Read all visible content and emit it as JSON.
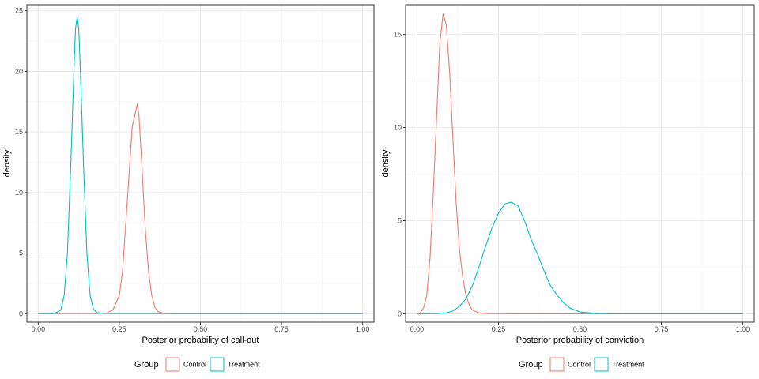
{
  "colors": {
    "control": "#F8766D",
    "treatment": "#00BFC4",
    "grid_major": "#EBEBEB",
    "grid_minor": "#F5F5F5",
    "panel_border": "#333333",
    "tick_text": "#4D4D4D"
  },
  "chart_data": [
    {
      "type": "line",
      "title": "",
      "xlabel": "Posterior probability of call-out",
      "ylabel": "density",
      "xlim": [
        -0.035,
        1.035
      ],
      "ylim": [
        -0.7,
        25.5
      ],
      "x_ticks": [
        0.0,
        0.25,
        0.5,
        0.75,
        1.0
      ],
      "x_tick_labels": [
        "0.00",
        "0.25",
        "0.50",
        "0.75",
        "1.00"
      ],
      "y_ticks": [
        0,
        5,
        10,
        15,
        20,
        25
      ],
      "y_tick_labels": [
        "0",
        "5",
        "10",
        "15",
        "20",
        "25"
      ],
      "grid": true,
      "legend": {
        "title": "Group",
        "position": "bottom",
        "entries": [
          "Control",
          "Treatment"
        ]
      },
      "series": [
        {
          "name": "Control",
          "points": [
            [
              0.0,
              0
            ],
            [
              0.18,
              0
            ],
            [
              0.21,
              0.05
            ],
            [
              0.23,
              0.3
            ],
            [
              0.25,
              1.5
            ],
            [
              0.26,
              3.5
            ],
            [
              0.27,
              7.5
            ],
            [
              0.28,
              11.5
            ],
            [
              0.29,
              15.5
            ],
            [
              0.3,
              16.6
            ],
            [
              0.305,
              17.3
            ],
            [
              0.31,
              16.5
            ],
            [
              0.32,
              12.0
            ],
            [
              0.33,
              7.0
            ],
            [
              0.34,
              3.5
            ],
            [
              0.35,
              1.5
            ],
            [
              0.36,
              0.5
            ],
            [
              0.37,
              0.15
            ],
            [
              0.39,
              0.02
            ],
            [
              0.42,
              0
            ],
            [
              1.0,
              0
            ]
          ]
        },
        {
          "name": "Treatment",
          "points": [
            [
              0.0,
              0
            ],
            [
              0.05,
              0.02
            ],
            [
              0.07,
              0.3
            ],
            [
              0.08,
              1.5
            ],
            [
              0.09,
              5.0
            ],
            [
              0.1,
              12.0
            ],
            [
              0.11,
              20.0
            ],
            [
              0.115,
              23.5
            ],
            [
              0.12,
              24.5
            ],
            [
              0.125,
              23.5
            ],
            [
              0.13,
              20.0
            ],
            [
              0.14,
              12.0
            ],
            [
              0.15,
              5.0
            ],
            [
              0.16,
              1.5
            ],
            [
              0.17,
              0.4
            ],
            [
              0.18,
              0.1
            ],
            [
              0.2,
              0.01
            ],
            [
              0.22,
              0
            ],
            [
              1.0,
              0
            ]
          ]
        }
      ]
    },
    {
      "type": "line",
      "title": "",
      "xlabel": "Posterior probability of conviction",
      "ylabel": "density",
      "xlim": [
        -0.035,
        1.035
      ],
      "ylim": [
        -0.45,
        16.6
      ],
      "x_ticks": [
        0.0,
        0.25,
        0.5,
        0.75,
        1.0
      ],
      "x_tick_labels": [
        "0.00",
        "0.25",
        "0.50",
        "0.75",
        "1.00"
      ],
      "y_ticks": [
        0,
        5,
        10,
        15
      ],
      "y_tick_labels": [
        "0",
        "5",
        "10",
        "15"
      ],
      "grid": true,
      "legend": {
        "title": "Group",
        "position": "bottom",
        "entries": [
          "Control",
          "Treatment"
        ]
      },
      "series": [
        {
          "name": "Control",
          "points": [
            [
              0.0,
              0
            ],
            [
              0.01,
              0.05
            ],
            [
              0.02,
              0.3
            ],
            [
              0.03,
              1.0
            ],
            [
              0.04,
              3.0
            ],
            [
              0.05,
              6.5
            ],
            [
              0.06,
              10.5
            ],
            [
              0.07,
              14.5
            ],
            [
              0.08,
              16.1
            ],
            [
              0.09,
              15.5
            ],
            [
              0.1,
              13.0
            ],
            [
              0.11,
              9.5
            ],
            [
              0.12,
              6.0
            ],
            [
              0.13,
              3.5
            ],
            [
              0.14,
              2.0
            ],
            [
              0.15,
              1.0
            ],
            [
              0.16,
              0.5
            ],
            [
              0.17,
              0.2
            ],
            [
              0.19,
              0.05
            ],
            [
              0.22,
              0.01
            ],
            [
              0.3,
              0
            ],
            [
              1.0,
              0
            ]
          ]
        },
        {
          "name": "Treatment",
          "points": [
            [
              0.0,
              0
            ],
            [
              0.06,
              0.01
            ],
            [
              0.09,
              0.05
            ],
            [
              0.11,
              0.15
            ],
            [
              0.13,
              0.4
            ],
            [
              0.15,
              0.8
            ],
            [
              0.17,
              1.5
            ],
            [
              0.19,
              2.5
            ],
            [
              0.21,
              3.6
            ],
            [
              0.23,
              4.6
            ],
            [
              0.25,
              5.4
            ],
            [
              0.27,
              5.9
            ],
            [
              0.29,
              6.0
            ],
            [
              0.31,
              5.8
            ],
            [
              0.33,
              5.0
            ],
            [
              0.35,
              4.0
            ],
            [
              0.37,
              3.2
            ],
            [
              0.39,
              2.3
            ],
            [
              0.41,
              1.5
            ],
            [
              0.43,
              1.0
            ],
            [
              0.45,
              0.6
            ],
            [
              0.47,
              0.3
            ],
            [
              0.5,
              0.1
            ],
            [
              0.55,
              0.02
            ],
            [
              0.6,
              0
            ],
            [
              1.0,
              0
            ]
          ]
        }
      ]
    }
  ]
}
